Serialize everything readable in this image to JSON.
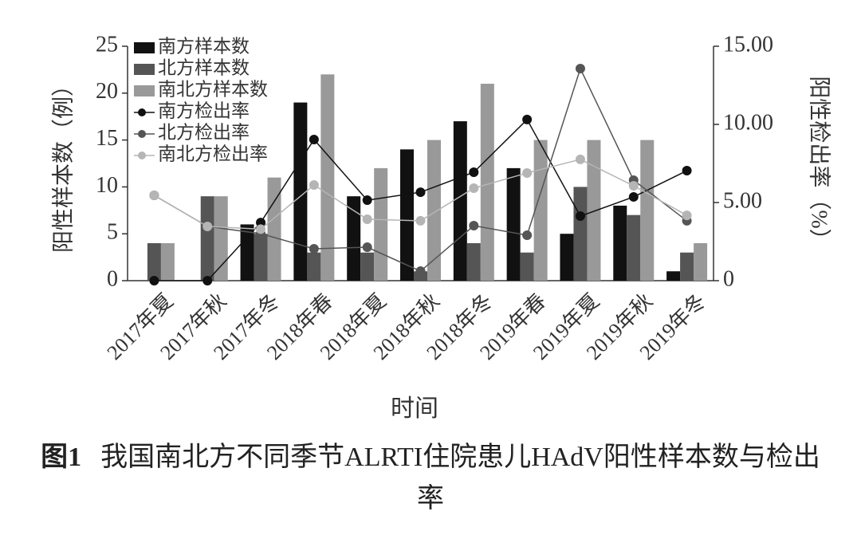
{
  "chart_data": {
    "type": "bar",
    "y_label": "阳性样本数（例）",
    "y2_label": "阳性检出率（%）",
    "x_label": "时间",
    "caption": {
      "label": "图1",
      "text": "我国南北方不同季节ALRTI住院患儿HAdV阳性样本数与检出率"
    },
    "categories": [
      "2017年夏",
      "2017年秋",
      "2017年冬",
      "2018年春",
      "2018年夏",
      "2018年秋",
      "2018年冬",
      "2019年春",
      "2019年夏",
      "2019年秋",
      "2019年冬"
    ],
    "series": [
      {
        "name": "南方样本数",
        "type": "bar",
        "color": "#111111",
        "values": [
          0,
          0,
          6,
          19,
          9,
          14,
          17,
          12,
          5,
          8,
          1
        ]
      },
      {
        "name": "北方样本数",
        "type": "bar",
        "color": "#555555",
        "values": [
          4,
          9,
          5,
          3,
          3,
          1,
          4,
          3,
          10,
          7,
          3
        ]
      },
      {
        "name": "南北方样本数",
        "type": "bar",
        "color": "#999999",
        "values": [
          4,
          9,
          11,
          22,
          12,
          15,
          21,
          15,
          15,
          15,
          4
        ]
      },
      {
        "name": "南方检出率",
        "type": "line",
        "axis": "y2",
        "color": "#111111",
        "values": [
          0,
          0,
          3.72,
          9.03,
          5.15,
          5.66,
          6.94,
          10.31,
          4.13,
          5.36,
          7.04
        ]
      },
      {
        "name": "北方检出率",
        "type": "line",
        "axis": "y2",
        "color": "#555555",
        "values": [
          5.46,
          3.47,
          3.01,
          2.04,
          2.14,
          0.61,
          3.52,
          2.91,
          13.57,
          6.43,
          3.83
        ]
      },
      {
        "name": "南北方检出率",
        "type": "line",
        "axis": "y2",
        "color": "#b5b5b5",
        "values": [
          5.46,
          3.47,
          3.3,
          6.12,
          3.93,
          3.83,
          5.92,
          6.89,
          7.76,
          6.07,
          4.18
        ]
      }
    ],
    "ylim": [
      0,
      25
    ],
    "yticks": [
      0,
      5,
      10,
      15,
      20,
      25
    ],
    "y2lim": [
      0,
      15
    ],
    "y2ticks": [
      0,
      {
        "value": 5,
        "label": "5.00"
      },
      {
        "value": 10,
        "label": "10.00"
      },
      {
        "value": 15,
        "label": "15.00"
      }
    ]
  }
}
